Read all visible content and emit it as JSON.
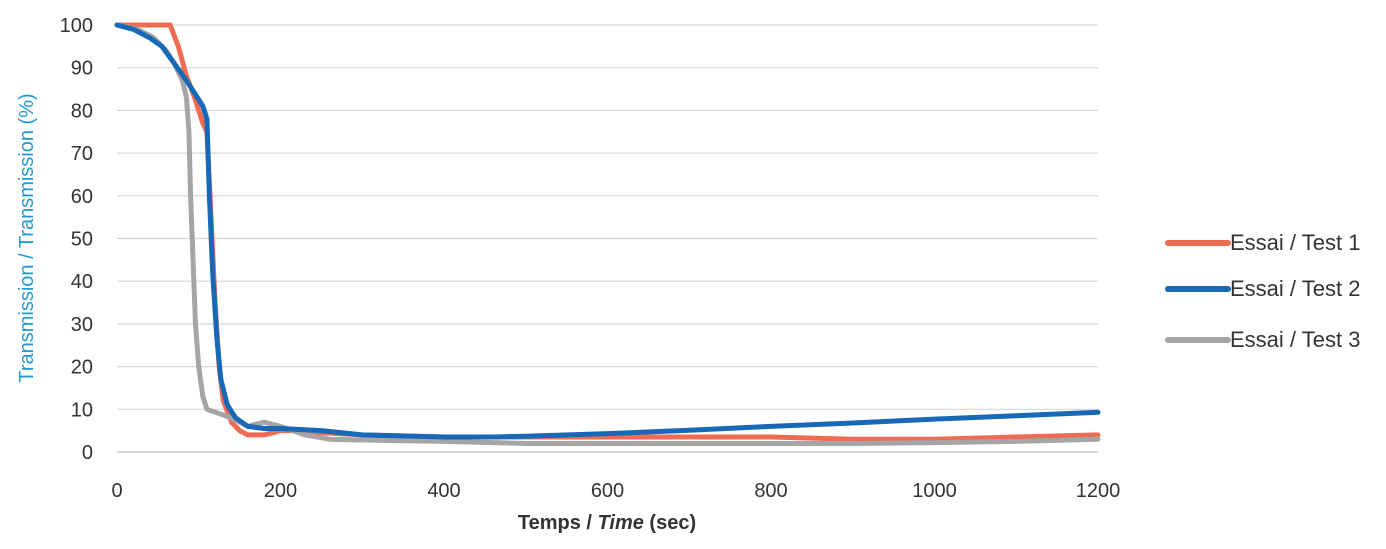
{
  "chart_data": {
    "type": "line",
    "title": "",
    "xlabel": {
      "prefix": "Temps / ",
      "italic": "Time",
      "suffix": " (sec)"
    },
    "ylabel": "Transmission / Transmission (%)",
    "xlim": [
      0,
      1200
    ],
    "ylim": [
      0,
      100
    ],
    "x_ticks": [
      0,
      200,
      400,
      600,
      800,
      1000,
      1200
    ],
    "y_ticks": [
      0,
      10,
      20,
      30,
      40,
      50,
      60,
      70,
      80,
      90,
      100
    ],
    "grid": "horizontal",
    "legend_position": "right",
    "axis_label_color": "#1f9ad1",
    "series": [
      {
        "name": "Essai / Test 1",
        "color": "#ef6b52",
        "points": [
          [
            0,
            100
          ],
          [
            30,
            100
          ],
          [
            65,
            100
          ],
          [
            75,
            95
          ],
          [
            85,
            88
          ],
          [
            95,
            83
          ],
          [
            105,
            77
          ],
          [
            110,
            75
          ],
          [
            115,
            55
          ],
          [
            120,
            35
          ],
          [
            125,
            20
          ],
          [
            130,
            12
          ],
          [
            140,
            7
          ],
          [
            150,
            5
          ],
          [
            160,
            4
          ],
          [
            180,
            4
          ],
          [
            200,
            5
          ],
          [
            220,
            5
          ],
          [
            250,
            4.5
          ],
          [
            300,
            4
          ],
          [
            400,
            3.5
          ],
          [
            500,
            3.5
          ],
          [
            600,
            3.5
          ],
          [
            700,
            3.5
          ],
          [
            800,
            3.5
          ],
          [
            900,
            3
          ],
          [
            1000,
            3
          ],
          [
            1100,
            3.5
          ],
          [
            1200,
            4
          ]
        ]
      },
      {
        "name": "Essai / Test 2",
        "color": "#1769b8",
        "points": [
          [
            0,
            100
          ],
          [
            20,
            99
          ],
          [
            40,
            97
          ],
          [
            55,
            95
          ],
          [
            70,
            91
          ],
          [
            85,
            87
          ],
          [
            95,
            84
          ],
          [
            105,
            81
          ],
          [
            110,
            78
          ],
          [
            113,
            60
          ],
          [
            117,
            42
          ],
          [
            122,
            27
          ],
          [
            127,
            17
          ],
          [
            135,
            11
          ],
          [
            145,
            8
          ],
          [
            160,
            6
          ],
          [
            180,
            5.5
          ],
          [
            200,
            5.5
          ],
          [
            250,
            5
          ],
          [
            300,
            4
          ],
          [
            400,
            3.5
          ],
          [
            460,
            3.5
          ],
          [
            500,
            3.7
          ],
          [
            600,
            4.3
          ],
          [
            700,
            5.1
          ],
          [
            800,
            6
          ],
          [
            900,
            6.8
          ],
          [
            1000,
            7.7
          ],
          [
            1100,
            8.5
          ],
          [
            1200,
            9.3
          ]
        ]
      },
      {
        "name": "Essai / Test 3",
        "color": "#a5a5a8",
        "points": [
          [
            0,
            100
          ],
          [
            25,
            99
          ],
          [
            45,
            97
          ],
          [
            60,
            94
          ],
          [
            70,
            91
          ],
          [
            80,
            87
          ],
          [
            85,
            83
          ],
          [
            88,
            75
          ],
          [
            90,
            60
          ],
          [
            93,
            45
          ],
          [
            96,
            30
          ],
          [
            100,
            20
          ],
          [
            105,
            13
          ],
          [
            110,
            10
          ],
          [
            125,
            9
          ],
          [
            140,
            8
          ],
          [
            160,
            6
          ],
          [
            180,
            7
          ],
          [
            200,
            6
          ],
          [
            230,
            4
          ],
          [
            260,
            3
          ],
          [
            300,
            2.8
          ],
          [
            400,
            2.5
          ],
          [
            500,
            2
          ],
          [
            600,
            2
          ],
          [
            700,
            2
          ],
          [
            800,
            2
          ],
          [
            900,
            2
          ],
          [
            1000,
            2.2
          ],
          [
            1100,
            2.5
          ],
          [
            1200,
            3
          ]
        ]
      }
    ]
  }
}
